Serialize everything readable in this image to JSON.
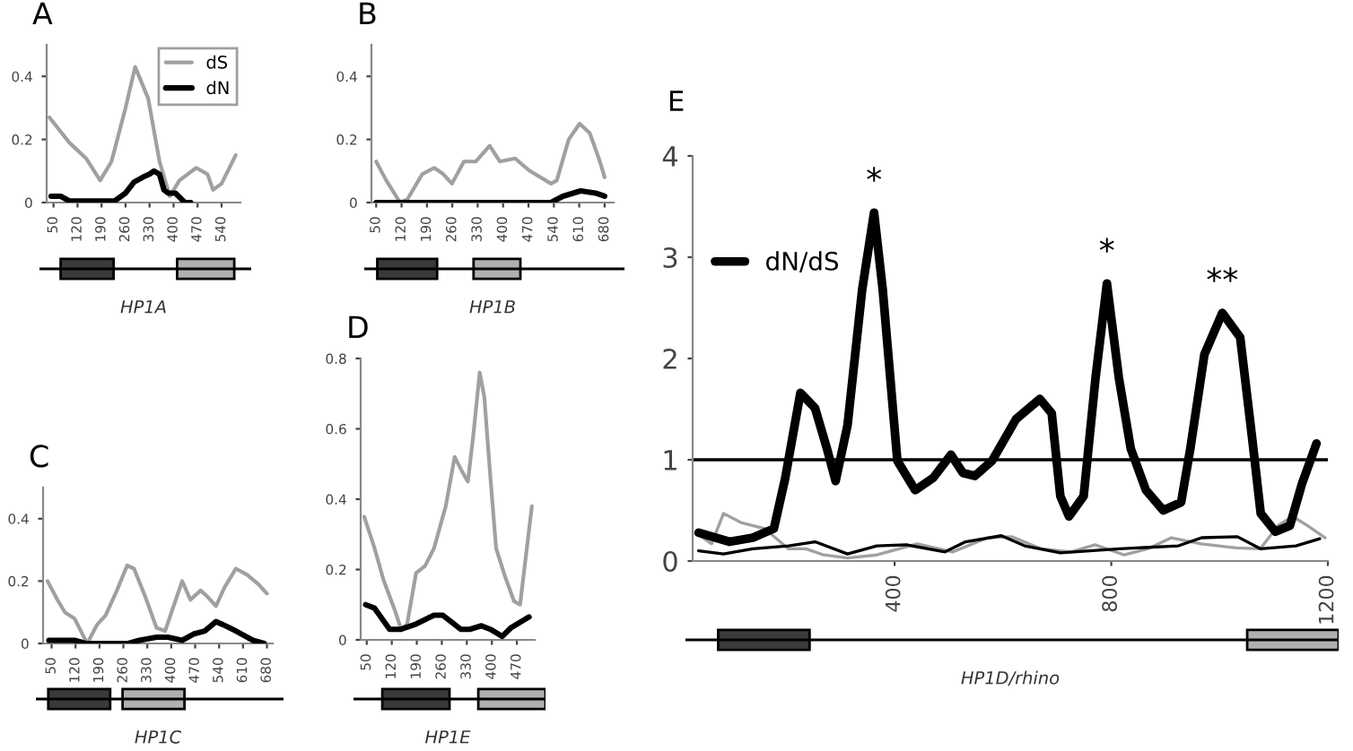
{
  "chart_data": [
    {
      "type": "line",
      "title": "A",
      "xlabel": "HP1A",
      "xlim": [
        30,
        595
      ],
      "ylim": [
        0,
        0.5
      ],
      "xticks": [
        50,
        120,
        190,
        260,
        330,
        400,
        470,
        540
      ],
      "yticks": [
        0,
        0.2,
        0.4
      ],
      "legend": "top right",
      "series": [
        {
          "name": "dS",
          "color": "#a0a0a0",
          "x": [
            38,
            96,
            145,
            186,
            219,
            260,
            288,
            326,
            359,
            389,
            417,
            466,
            499,
            515,
            540,
            581
          ],
          "values": [
            0.27,
            0.19,
            0.14,
            0.07,
            0.13,
            0.3,
            0.43,
            0.33,
            0.13,
            0.02,
            0.07,
            0.11,
            0.09,
            0.04,
            0.06,
            0.15
          ]
        },
        {
          "name": "dN",
          "color": "#000000",
          "x": [
            43,
            71,
            96,
            228,
            260,
            285,
            310,
            330,
            343,
            359,
            372,
            384,
            405,
            433,
            450
          ],
          "values": [
            0.02,
            0.02,
            0.005,
            0.005,
            0.03,
            0.065,
            0.08,
            0.09,
            0.1,
            0.09,
            0.04,
            0.03,
            0.03,
            0,
            0
          ]
        }
      ]
    },
    {
      "type": "line",
      "title": "B",
      "xlabel": "HP1B",
      "xlim": [
        37,
        705
      ],
      "ylim": [
        0,
        0.5
      ],
      "xticks": [
        50,
        120,
        190,
        260,
        330,
        400,
        470,
        540,
        610,
        680
      ],
      "yticks": [
        0,
        0.2,
        0.4
      ],
      "series": [
        {
          "color": "#a0a0a0",
          "x": [
            50,
            78,
            116,
            136,
            177,
            210,
            235,
            259,
            292,
            325,
            363,
            391,
            433,
            474,
            532,
            548,
            581,
            611,
            639,
            667,
            680
          ],
          "values": [
            0.13,
            0.07,
            0,
            0.01,
            0.09,
            0.11,
            0.09,
            0.06,
            0.13,
            0.13,
            0.18,
            0.13,
            0.14,
            0.1,
            0.06,
            0.07,
            0.2,
            0.25,
            0.22,
            0.13,
            0.08
          ]
        },
        {
          "color": "#000000",
          "x": [
            50,
            532,
            565,
            614,
            655,
            680
          ],
          "values": [
            0,
            0,
            0.02,
            0.037,
            0.03,
            0.02
          ]
        }
      ]
    },
    {
      "type": "line",
      "title": "C",
      "xlabel": "HP1C",
      "xlim": [
        25,
        697
      ],
      "ylim": [
        0,
        0.5
      ],
      "xticks": [
        50,
        120,
        190,
        260,
        330,
        400,
        470,
        540,
        610,
        680
      ],
      "yticks": [
        0,
        0.2,
        0.4
      ],
      "series": [
        {
          "color": "#a0a0a0",
          "x": [
            38,
            67,
            89,
            117,
            154,
            183,
            208,
            241,
            271,
            291,
            324,
            357,
            382,
            407,
            432,
            456,
            486,
            506,
            531,
            556,
            589,
            622,
            655,
            680
          ],
          "values": [
            0.2,
            0.14,
            0.1,
            0.08,
            0,
            0.06,
            0.09,
            0.17,
            0.25,
            0.24,
            0.15,
            0.05,
            0.04,
            0.12,
            0.2,
            0.14,
            0.17,
            0.15,
            0.12,
            0.18,
            0.24,
            0.22,
            0.19,
            0.16
          ]
        },
        {
          "color": "#000000",
          "x": [
            42,
            117,
            150,
            274,
            307,
            357,
            390,
            432,
            465,
            498,
            531,
            552,
            589,
            639,
            672
          ],
          "values": [
            0.01,
            0.01,
            0,
            0,
            0.01,
            0.02,
            0.02,
            0.01,
            0.03,
            0.04,
            0.07,
            0.06,
            0.04,
            0.01,
            0
          ]
        }
      ]
    },
    {
      "type": "line",
      "title": "D",
      "xlabel": "HP1E",
      "xlim": [
        33,
        520
      ],
      "ylim": [
        0,
        0.8
      ],
      "xticks": [
        50,
        120,
        190,
        260,
        330,
        400,
        470
      ],
      "yticks": [
        0,
        0.2,
        0.4,
        0.6,
        0.8
      ],
      "series": [
        {
          "color": "#a0a0a0",
          "x": [
            43,
            72,
            97,
            130,
            146,
            163,
            188,
            213,
            238,
            271,
            296,
            316,
            333,
            349,
            366,
            379,
            396,
            412,
            437,
            462,
            479,
            512
          ],
          "values": [
            0.35,
            0.26,
            0.17,
            0.08,
            0.03,
            0.045,
            0.19,
            0.21,
            0.26,
            0.38,
            0.52,
            0.48,
            0.45,
            0.59,
            0.76,
            0.69,
            0.46,
            0.26,
            0.18,
            0.11,
            0.1,
            0.38
          ]
        },
        {
          "color": "#000000",
          "x": [
            47,
            72,
            114,
            146,
            188,
            238,
            263,
            313,
            338,
            371,
            396,
            429,
            454,
            479,
            504
          ],
          "values": [
            0.1,
            0.09,
            0.03,
            0.03,
            0.045,
            0.07,
            0.07,
            0.03,
            0.03,
            0.04,
            0.03,
            0.01,
            0.035,
            0.05,
            0.065
          ]
        }
      ]
    },
    {
      "type": "line",
      "title": "E",
      "xlabel": "HP1D/rhino",
      "xlim": [
        27,
        1200
      ],
      "ylim": [
        0,
        4
      ],
      "xticks": [
        400,
        800,
        1200
      ],
      "yticks": [
        0,
        1,
        2,
        3,
        4
      ],
      "legend": "top left",
      "ref_lines": [
        {
          "axis": "y",
          "value": 1,
          "color": "#000000"
        }
      ],
      "annotations": [
        {
          "text": "*",
          "x": 362,
          "y": 3.44
        },
        {
          "text": "*",
          "x": 792,
          "y": 2.74
        },
        {
          "text": "**",
          "x": 1005,
          "y": 2.45
        }
      ],
      "series": [
        {
          "color": "#a0a0a0",
          "x": [
            38,
            62,
            84,
            116,
            160,
            204,
            236,
            269,
            313,
            367,
            442,
            507,
            572,
            616,
            671,
            726,
            770,
            824,
            867,
            911,
            966,
            1031,
            1075,
            1108,
            1135,
            1162,
            1195
          ],
          "values": [
            0.26,
            0.17,
            0.47,
            0.38,
            0.32,
            0.12,
            0.12,
            0.06,
            0.03,
            0.06,
            0.17,
            0.09,
            0.23,
            0.24,
            0.12,
            0.09,
            0.16,
            0.06,
            0.12,
            0.23,
            0.17,
            0.13,
            0.12,
            0.35,
            0.44,
            0.35,
            0.23
          ]
        },
        {
          "color": "#000000",
          "x": [
            38,
            84,
            138,
            204,
            253,
            313,
            367,
            422,
            493,
            531,
            597,
            640,
            706,
            815,
            924,
            967,
            1033,
            1076,
            1141,
            1185
          ],
          "values": [
            0.1,
            0.07,
            0.12,
            0.15,
            0.19,
            0.07,
            0.15,
            0.16,
            0.09,
            0.19,
            0.25,
            0.15,
            0.08,
            0.12,
            0.15,
            0.23,
            0.24,
            0.12,
            0.15,
            0.22
          ]
        },
        {
          "name": "dN/dS",
          "color": "#000000",
          "x": [
            38,
            95,
            138,
            177,
            198,
            226,
            253,
            275,
            291,
            313,
            340,
            362,
            378,
            405,
            438,
            471,
            504,
            526,
            548,
            580,
            624,
            668,
            690,
            706,
            722,
            749,
            771,
            792,
            814,
            836,
            864,
            896,
            929,
            946,
            972,
            1005,
            1038,
            1060,
            1076,
            1103,
            1130,
            1152,
            1179
          ],
          "values": [
            0.28,
            0.19,
            0.23,
            0.32,
            0.82,
            1.66,
            1.51,
            1.11,
            0.79,
            1.34,
            2.68,
            3.44,
            2.68,
            0.99,
            0.7,
            0.82,
            1.05,
            0.87,
            0.84,
            0.99,
            1.4,
            1.6,
            1.46,
            0.64,
            0.44,
            0.64,
            1.81,
            2.74,
            1.81,
            1.11,
            0.7,
            0.5,
            0.58,
            1.11,
            2.04,
            2.45,
            2.21,
            1.22,
            0.47,
            0.29,
            0.35,
            0.76,
            1.16
          ]
        }
      ]
    }
  ]
}
